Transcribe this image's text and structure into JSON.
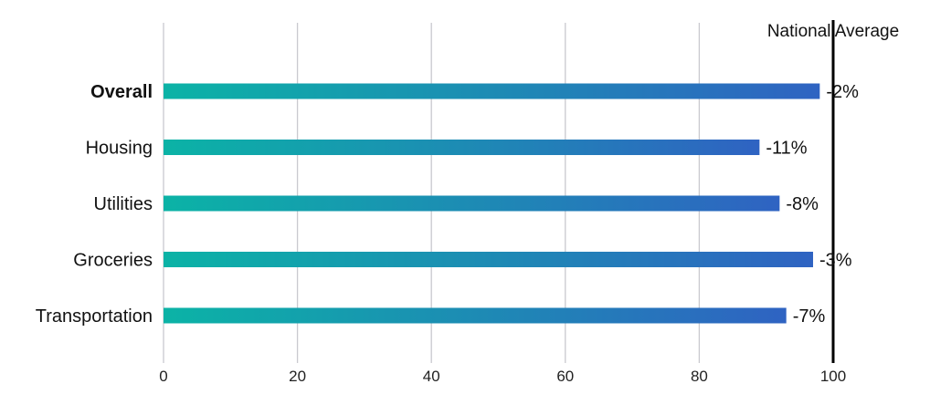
{
  "chart_data": {
    "type": "bar",
    "orientation": "horizontal",
    "categories": [
      "Overall",
      "Housing",
      "Utilities",
      "Groceries",
      "Transportation"
    ],
    "values": [
      98,
      89,
      92,
      97,
      93
    ],
    "value_labels": [
      "-2%",
      "-11%",
      "-8%",
      "-3%",
      "-7%"
    ],
    "bold_categories": [
      "Overall"
    ],
    "xlim": [
      0,
      100
    ],
    "xticks": [
      0,
      20,
      40,
      60,
      80,
      100
    ],
    "grid": true,
    "reference_line": {
      "value": 100,
      "label": "National Average"
    },
    "colors": {
      "bar_start": "#0bb3a6",
      "bar_end": "#2f63c2",
      "grid": "#c9c9cf",
      "reference": "#000000",
      "text": "#111111"
    }
  }
}
